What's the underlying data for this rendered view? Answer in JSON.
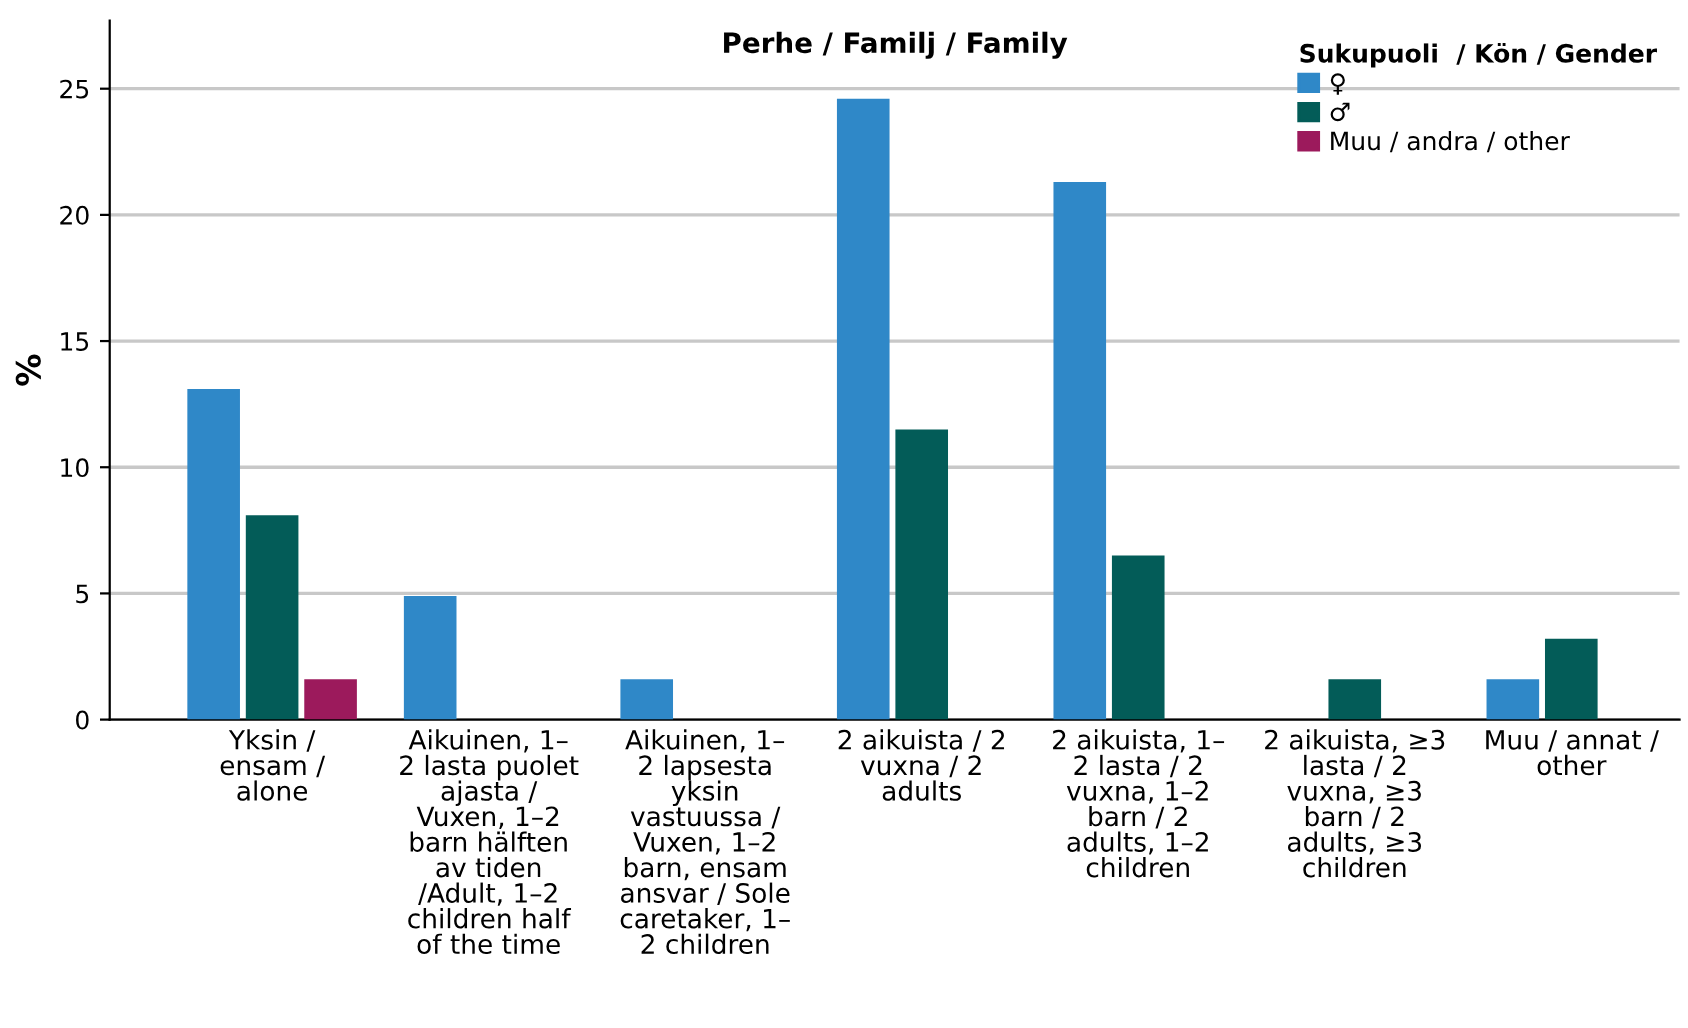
{
  "chart_data": {
    "type": "bar",
    "title": "Perhe / Familj / Family",
    "ylabel": "%",
    "legend_title": "Sukupuoli  / Kön / Gender",
    "categories": [
      "Yksin /\nensam /\nalone",
      "Aikuinen, 1–\n2 lasta puolet\najasta /\nVuxen, 1–2\nbarn hälften\nav tiden\n/Adult, 1–2\nchildren half\nof the time",
      "Aikuinen, 1–\n2 lapsesta\nyksin\nvastuussa /\nVuxen, 1–2\nbarn, ensam\nansvar / Sole\ncaretaker, 1–\n2 children",
      "2 aikuista / 2\nvuxna / 2\nadults",
      "2 aikuista, 1–\n2 lasta / 2\nvuxna, 1–2\nbarn / 2\nadults, 1–2\nchildren",
      "2 aikuista, ≥3\nlasta / 2\nvuxna, ≥3\nbarn / 2\nadults, ≥3\nchildren",
      "Muu / annat /\nother"
    ],
    "series": [
      {
        "name": "♀",
        "color": "#2f88c8",
        "values": [
          13.1,
          4.9,
          1.6,
          24.6,
          21.3,
          null,
          1.6
        ]
      },
      {
        "name": "♂",
        "color": "#035c58",
        "values": [
          8.1,
          null,
          null,
          11.5,
          6.5,
          1.6,
          3.2
        ]
      },
      {
        "name": "Muu / andra / other",
        "color": "#9c1a5c",
        "values": [
          1.6,
          null,
          null,
          null,
          null,
          null,
          null
        ]
      }
    ],
    "ylim": [
      0,
      27.7
    ],
    "yticks": [
      0,
      5,
      10,
      15,
      20,
      25
    ],
    "grid": "y",
    "legend": "top right"
  }
}
